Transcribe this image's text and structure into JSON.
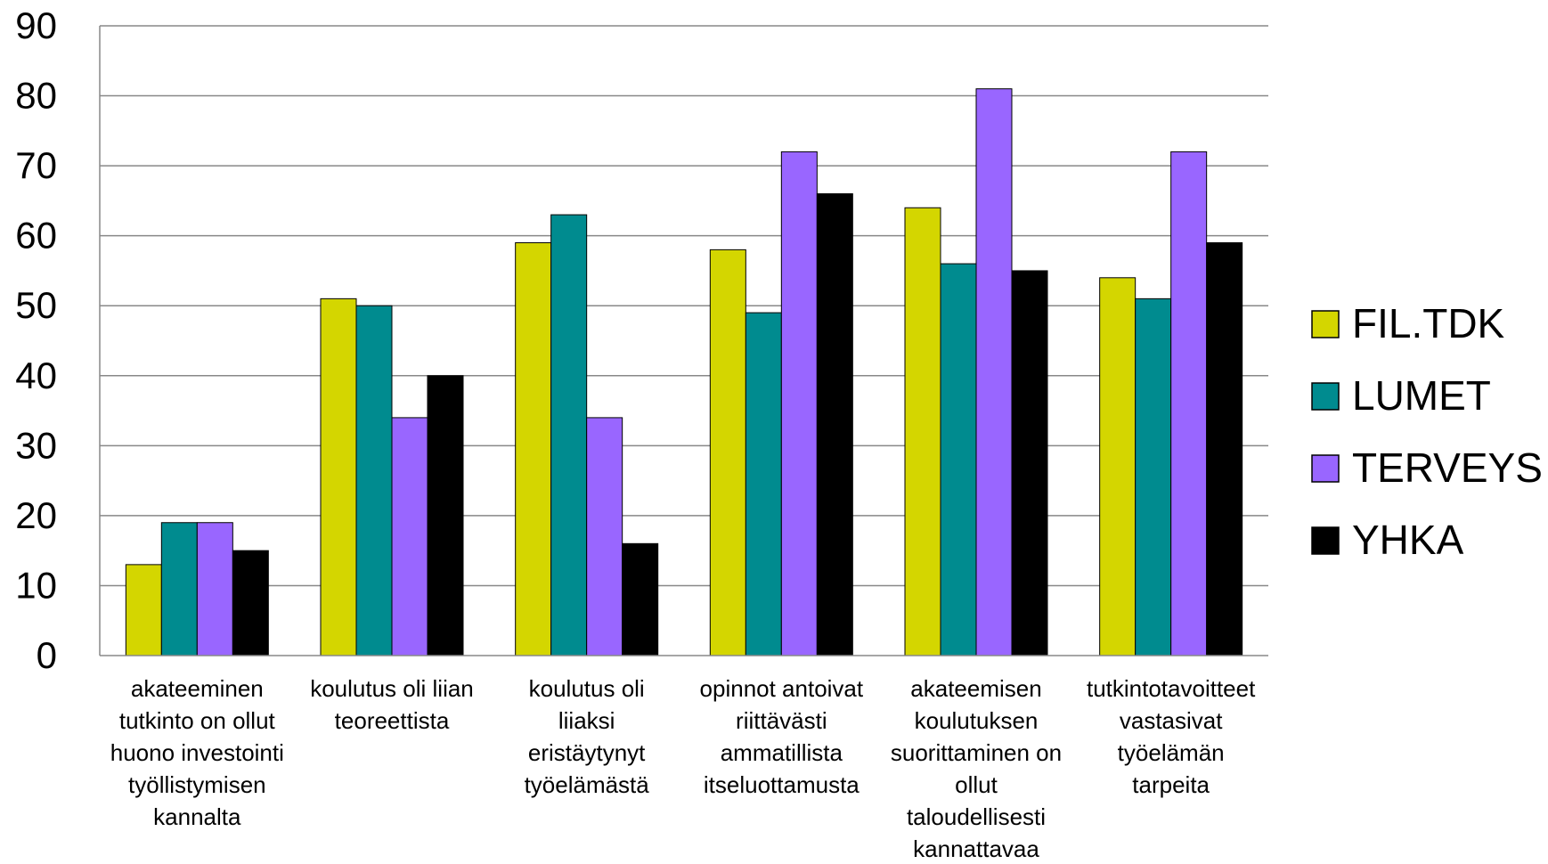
{
  "chart_data": {
    "type": "bar",
    "title": "",
    "xlabel": "",
    "ylabel": "",
    "ylim": [
      0,
      90
    ],
    "yticks": [
      "0",
      "10",
      "20",
      "30",
      "40",
      "50",
      "60",
      "70",
      "80",
      "90"
    ],
    "grid": true,
    "legend_position": "right",
    "categories": [
      [
        "akateeminen",
        "tutkinto on ollut",
        "huono investointi",
        "työllistymisen",
        "kannalta"
      ],
      [
        "koulutus oli liian",
        "teoreettista"
      ],
      [
        "koulutus oli",
        "liiaksi",
        "eristäytynyt",
        "työelämästä"
      ],
      [
        "opinnot antoivat",
        "riittävästi",
        "ammatillista",
        "itseluottamusta"
      ],
      [
        "akateemisen",
        "koulutuksen",
        "suorittaminen on",
        "ollut",
        "taloudellisesti",
        "kannattavaa"
      ],
      [
        "tutkintotavoitteet",
        "vastasivat",
        "työelämän",
        "tarpeita"
      ]
    ],
    "series": [
      {
        "name": "FIL.TDK",
        "color": "#d4d600",
        "values": [
          13,
          51,
          59,
          58,
          64,
          54
        ]
      },
      {
        "name": "LUMET",
        "color": "#008b8f",
        "values": [
          19,
          50,
          63,
          49,
          56,
          51
        ]
      },
      {
        "name": "TERVEYS",
        "color": "#9966ff",
        "values": [
          19,
          34,
          34,
          72,
          81,
          72
        ]
      },
      {
        "name": "YHKA",
        "color": "#000000",
        "values": [
          15,
          40,
          16,
          66,
          55,
          59
        ]
      }
    ]
  }
}
